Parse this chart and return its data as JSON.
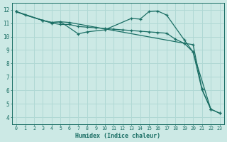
{
  "xlabel": "Humidex (Indice chaleur)",
  "xlim": [
    -0.5,
    23.5
  ],
  "ylim": [
    3.5,
    12.5
  ],
  "yticks": [
    4,
    5,
    6,
    7,
    8,
    9,
    10,
    11,
    12
  ],
  "xticks": [
    0,
    1,
    2,
    3,
    4,
    5,
    6,
    7,
    8,
    9,
    10,
    11,
    12,
    13,
    14,
    15,
    16,
    17,
    18,
    19,
    20,
    21,
    22,
    23
  ],
  "bg_color": "#cce9e5",
  "grid_color": "#b0d8d4",
  "line_color": "#1a6e64",
  "lines": [
    {
      "x": [
        0,
        1,
        3,
        4,
        5,
        6,
        7,
        8,
        9,
        10,
        11,
        12,
        13,
        14,
        15,
        16,
        17,
        18,
        19,
        20,
        21,
        22,
        23
      ],
      "y": [
        11.85,
        11.6,
        11.2,
        11.0,
        10.9,
        10.9,
        10.75,
        10.7,
        10.65,
        10.6,
        10.55,
        10.5,
        10.45,
        10.4,
        10.35,
        10.3,
        10.25,
        9.8,
        9.5,
        9.4,
        6.1,
        4.6,
        4.3
      ]
    },
    {
      "x": [
        0,
        3,
        4,
        5,
        7,
        8,
        10,
        13,
        14,
        15,
        16,
        17,
        19,
        20,
        21,
        22
      ],
      "y": [
        11.85,
        11.2,
        11.05,
        11.1,
        10.2,
        10.35,
        10.5,
        11.35,
        11.3,
        11.85,
        11.9,
        11.6,
        9.75,
        8.85,
        6.05,
        4.6
      ]
    },
    {
      "x": [
        0,
        3,
        4,
        5,
        6,
        19,
        20,
        22,
        23
      ],
      "y": [
        11.85,
        11.2,
        11.05,
        11.1,
        11.05,
        9.5,
        8.85,
        4.6,
        4.3
      ]
    }
  ]
}
